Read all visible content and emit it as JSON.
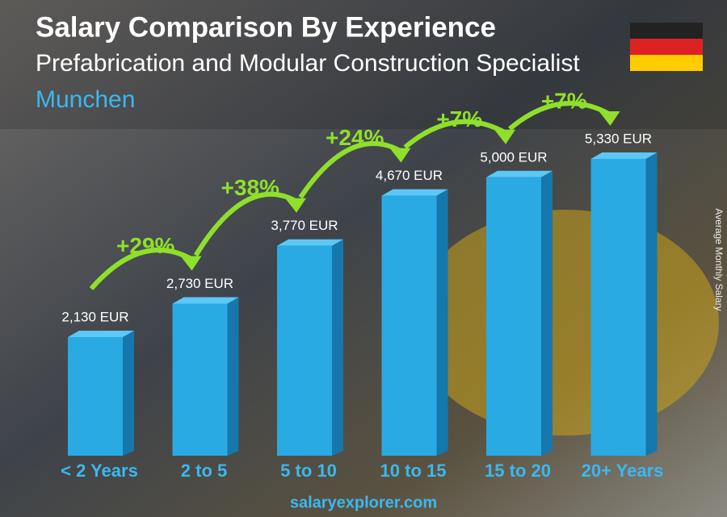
{
  "chart_data": {
    "type": "bar",
    "title": "Salary Comparison By Experience",
    "subtitle": "Prefabrication and Modular Construction Specialist",
    "location": "Munchen",
    "y_axis_label": "Average Monthly Salary",
    "footer": "salaryexplorer.com",
    "categories": [
      "< 2 Years",
      "2 to 5",
      "5 to 10",
      "10 to 15",
      "15 to 20",
      "20+ Years"
    ],
    "values": [
      2130,
      2730,
      3770,
      4670,
      5000,
      5330
    ],
    "value_labels": [
      "2,130 EUR",
      "2,730 EUR",
      "3,770 EUR",
      "4,670 EUR",
      "5,000 EUR",
      "5,330 EUR"
    ],
    "color": "#29aae2",
    "change": {
      "values": [
        29,
        38,
        24,
        7,
        7
      ],
      "value_labels": [
        "+29%",
        "+38%",
        "+24%",
        "+7%",
        "+7%"
      ],
      "color": "#8ee02a"
    }
  }
}
